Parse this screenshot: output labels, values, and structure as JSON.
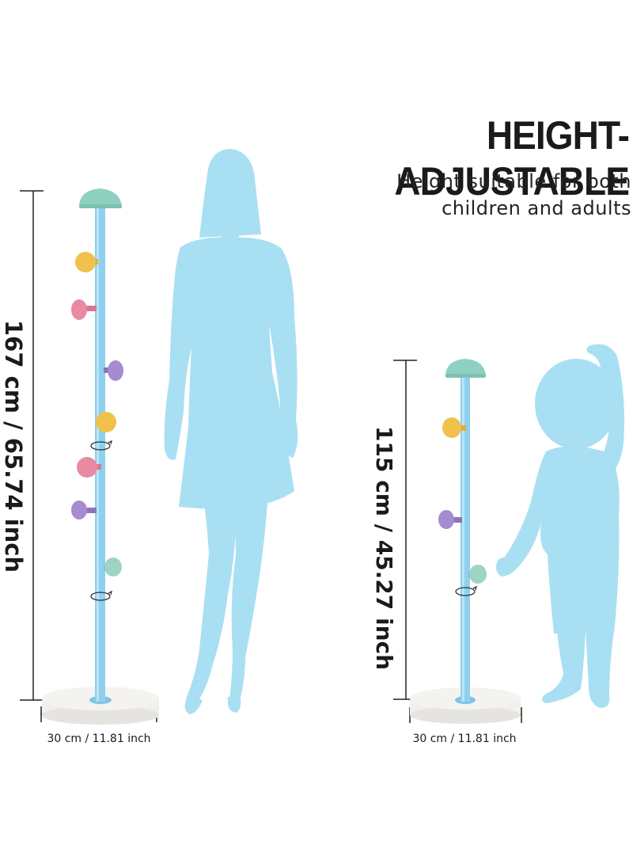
{
  "header": {
    "title": "HEIGHT-ADJUSTABLE",
    "subtitle_line1": "Height suitable for both",
    "subtitle_line2": "children and adults"
  },
  "tall_rack": {
    "height_label": "167 cm / 65.74 inch",
    "width_label": "30 cm / 11.81 inch"
  },
  "short_rack": {
    "height_label": "115 cm / 45.27 inch",
    "width_label": "30 cm / 11.81 inch"
  },
  "colors": {
    "silhouette": "#a9dff2",
    "pole": "#8fd0ee",
    "cap": "#8fd1c0",
    "hook_yellow": "#f0c24b",
    "hook_pink": "#e98aa5",
    "hook_purple": "#a58bcf",
    "hook_mint": "#9fd3c4",
    "base": "#efeeea"
  }
}
